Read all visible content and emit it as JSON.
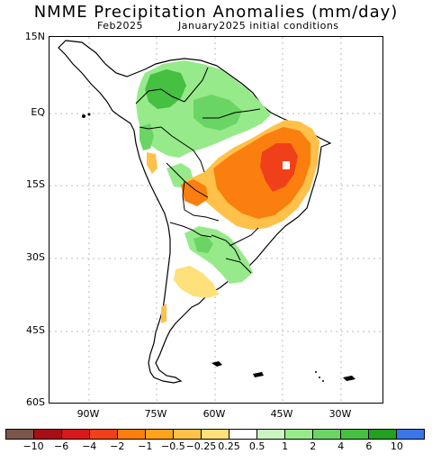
{
  "title": "NMME Precipitation Anomalies (mm/day)",
  "forecast_month": "Feb2025",
  "init_text": "January2025 initial conditions",
  "lat_labels": [
    "15N",
    "EQ",
    "15S",
    "30S",
    "45S",
    "60S"
  ],
  "lon_labels": [
    "90W",
    "75W",
    "60W",
    "45W",
    "30W"
  ],
  "colorbar": {
    "colors": [
      "#7a574b",
      "#a50f15",
      "#d7191c",
      "#f0401a",
      "#fa7f0e",
      "#ffa21e",
      "#ffc14a",
      "#ffe07a",
      "#ffffff",
      "#c8f5c0",
      "#96ea8a",
      "#6ad565",
      "#45c040",
      "#22a020",
      "#3b76e8"
    ],
    "labels": [
      "−10",
      "−6",
      "−4",
      "−2",
      "−1",
      "−0.5",
      "−0.25",
      "0.25",
      "0.5",
      "1",
      "2",
      "4",
      "6",
      "10"
    ]
  },
  "colors": {
    "dry_strong": "#f0401a",
    "dry": "#fa7f0e",
    "dry_light": "#ffc14a",
    "dry_pale": "#ffe07a",
    "wet_pale": "#c8f5c0",
    "wet": "#6ad565",
    "wet_strong": "#45c040",
    "missing": "#ffffff"
  }
}
